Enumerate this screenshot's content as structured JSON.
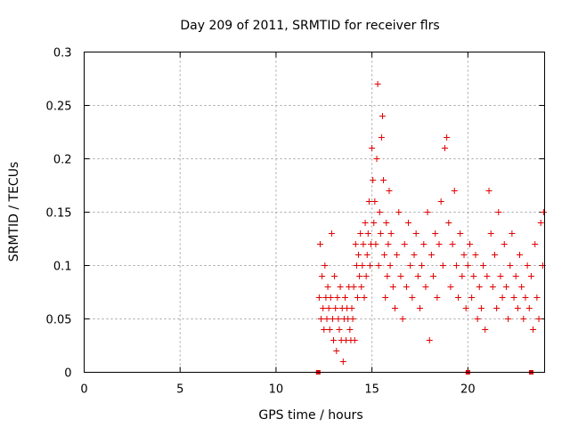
{
  "chart_data": {
    "type": "scatter",
    "title": "Day 209 of 2011, SRMTID for receiver flrs",
    "xlabel": "GPS time / hours",
    "ylabel": "SRMTID / TECUs",
    "xlim": [
      0,
      24
    ],
    "ylim": [
      0,
      0.3
    ],
    "x_ticks": [
      "0",
      "5",
      "10",
      "15",
      "20"
    ],
    "x_tick_values": [
      0,
      5,
      10,
      15,
      20
    ],
    "y_ticks": [
      "0",
      "0.05",
      "0.1",
      "0.15",
      "0.2",
      "0.25",
      "0.3"
    ],
    "y_tick_values": [
      0,
      0.05,
      0.1,
      0.15,
      0.2,
      0.25,
      0.3
    ],
    "grid": true,
    "marker": "plus",
    "color": "#e00000",
    "gap_markers_x": [
      12.2,
      20.0,
      23.3
    ],
    "series": [
      {
        "points": [
          [
            12.25,
            0.07
          ],
          [
            12.3,
            0.12
          ],
          [
            12.35,
            0.05
          ],
          [
            12.4,
            0.09
          ],
          [
            12.45,
            0.06
          ],
          [
            12.5,
            0.04
          ],
          [
            12.55,
            0.1
          ],
          [
            12.6,
            0.07
          ],
          [
            12.65,
            0.05
          ],
          [
            12.7,
            0.08
          ],
          [
            12.75,
            0.06
          ],
          [
            12.8,
            0.04
          ],
          [
            12.85,
            0.07
          ],
          [
            12.9,
            0.13
          ],
          [
            12.95,
            0.05
          ],
          [
            13.0,
            0.03
          ],
          [
            13.05,
            0.09
          ],
          [
            13.1,
            0.06
          ],
          [
            13.15,
            0.02
          ],
          [
            13.2,
            0.07
          ],
          [
            13.25,
            0.05
          ],
          [
            13.3,
            0.04
          ],
          [
            13.35,
            0.08
          ],
          [
            13.4,
            0.03
          ],
          [
            13.45,
            0.06
          ],
          [
            13.5,
            0.01
          ],
          [
            13.55,
            0.05
          ],
          [
            13.6,
            0.07
          ],
          [
            13.65,
            0.03
          ],
          [
            13.7,
            0.06
          ],
          [
            13.75,
            0.05
          ],
          [
            13.8,
            0.08
          ],
          [
            13.85,
            0.04
          ],
          [
            13.9,
            0.03
          ],
          [
            13.95,
            0.06
          ],
          [
            14.0,
            0.05
          ],
          [
            14.05,
            0.08
          ],
          [
            14.1,
            0.03
          ],
          [
            14.15,
            0.12
          ],
          [
            14.2,
            0.1
          ],
          [
            14.25,
            0.07
          ],
          [
            14.3,
            0.11
          ],
          [
            14.35,
            0.09
          ],
          [
            14.4,
            0.13
          ],
          [
            14.45,
            0.08
          ],
          [
            14.5,
            0.1
          ],
          [
            14.55,
            0.12
          ],
          [
            14.6,
            0.07
          ],
          [
            14.65,
            0.14
          ],
          [
            14.7,
            0.09
          ],
          [
            14.75,
            0.11
          ],
          [
            14.8,
            0.13
          ],
          [
            14.85,
            0.16
          ],
          [
            14.9,
            0.1
          ],
          [
            14.95,
            0.12
          ],
          [
            15.0,
            0.21
          ],
          [
            15.05,
            0.18
          ],
          [
            15.1,
            0.14
          ],
          [
            15.15,
            0.16
          ],
          [
            15.2,
            0.12
          ],
          [
            15.25,
            0.2
          ],
          [
            15.3,
            0.27
          ],
          [
            15.35,
            0.1
          ],
          [
            15.4,
            0.15
          ],
          [
            15.45,
            0.13
          ],
          [
            15.5,
            0.22
          ],
          [
            15.55,
            0.24
          ],
          [
            15.6,
            0.18
          ],
          [
            15.65,
            0.11
          ],
          [
            15.7,
            0.07
          ],
          [
            15.75,
            0.14
          ],
          [
            15.8,
            0.09
          ],
          [
            15.85,
            0.12
          ],
          [
            15.9,
            0.17
          ],
          [
            15.95,
            0.1
          ],
          [
            16.0,
            0.13
          ],
          [
            16.1,
            0.08
          ],
          [
            16.2,
            0.06
          ],
          [
            16.3,
            0.11
          ],
          [
            16.4,
            0.15
          ],
          [
            16.5,
            0.09
          ],
          [
            16.6,
            0.05
          ],
          [
            16.7,
            0.12
          ],
          [
            16.8,
            0.08
          ],
          [
            16.9,
            0.14
          ],
          [
            17.0,
            0.1
          ],
          [
            17.1,
            0.07
          ],
          [
            17.2,
            0.11
          ],
          [
            17.3,
            0.13
          ],
          [
            17.4,
            0.09
          ],
          [
            17.5,
            0.06
          ],
          [
            17.6,
            0.1
          ],
          [
            17.7,
            0.12
          ],
          [
            17.8,
            0.08
          ],
          [
            17.9,
            0.15
          ],
          [
            18.0,
            0.03
          ],
          [
            18.1,
            0.11
          ],
          [
            18.2,
            0.09
          ],
          [
            18.3,
            0.13
          ],
          [
            18.4,
            0.07
          ],
          [
            18.5,
            0.12
          ],
          [
            18.6,
            0.16
          ],
          [
            18.7,
            0.1
          ],
          [
            18.8,
            0.21
          ],
          [
            18.9,
            0.22
          ],
          [
            19.0,
            0.14
          ],
          [
            19.1,
            0.08
          ],
          [
            19.2,
            0.12
          ],
          [
            19.3,
            0.17
          ],
          [
            19.4,
            0.1
          ],
          [
            19.5,
            0.07
          ],
          [
            19.6,
            0.13
          ],
          [
            19.7,
            0.09
          ],
          [
            19.8,
            0.11
          ],
          [
            19.9,
            0.06
          ],
          [
            20.0,
            0.1
          ],
          [
            20.1,
            0.12
          ],
          [
            20.2,
            0.07
          ],
          [
            20.3,
            0.09
          ],
          [
            20.4,
            0.11
          ],
          [
            20.5,
            0.05
          ],
          [
            20.6,
            0.08
          ],
          [
            20.7,
            0.06
          ],
          [
            20.8,
            0.1
          ],
          [
            20.9,
            0.04
          ],
          [
            21.0,
            0.09
          ],
          [
            21.1,
            0.17
          ],
          [
            21.2,
            0.13
          ],
          [
            21.3,
            0.08
          ],
          [
            21.4,
            0.11
          ],
          [
            21.5,
            0.06
          ],
          [
            21.6,
            0.15
          ],
          [
            21.7,
            0.09
          ],
          [
            21.8,
            0.07
          ],
          [
            21.9,
            0.12
          ],
          [
            22.0,
            0.08
          ],
          [
            22.1,
            0.05
          ],
          [
            22.2,
            0.1
          ],
          [
            22.3,
            0.13
          ],
          [
            22.4,
            0.07
          ],
          [
            22.5,
            0.09
          ],
          [
            22.6,
            0.06
          ],
          [
            22.7,
            0.11
          ],
          [
            22.8,
            0.08
          ],
          [
            22.9,
            0.05
          ],
          [
            23.0,
            0.07
          ],
          [
            23.1,
            0.1
          ],
          [
            23.2,
            0.06
          ],
          [
            23.3,
            0.09
          ],
          [
            23.4,
            0.04
          ],
          [
            23.5,
            0.12
          ],
          [
            23.6,
            0.07
          ],
          [
            23.7,
            0.05
          ],
          [
            23.8,
            0.14
          ],
          [
            23.9,
            0.1
          ],
          [
            23.95,
            0.15
          ]
        ]
      }
    ]
  }
}
